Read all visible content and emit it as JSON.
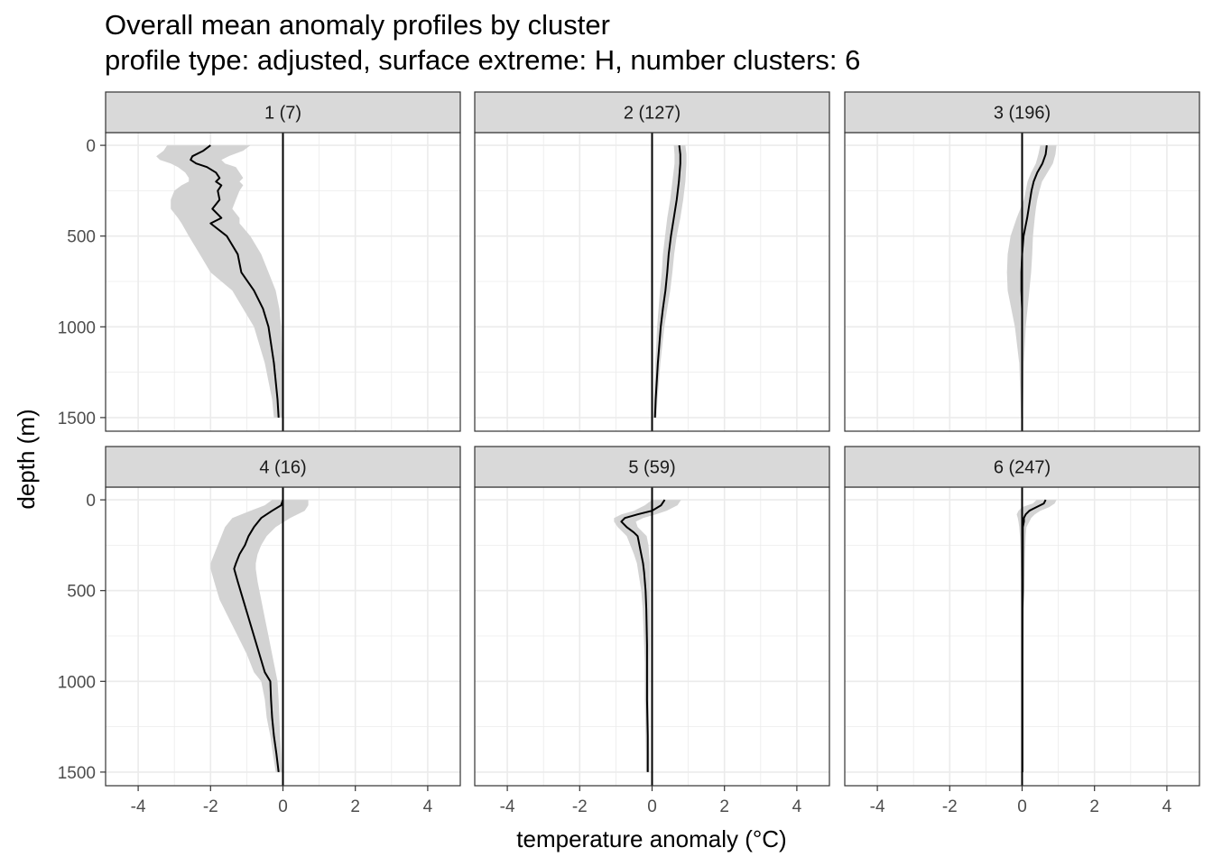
{
  "title": "Overall mean anomaly profiles by cluster",
  "subtitle": "profile type: adjusted, surface extreme: H, number clusters: 6",
  "chart_data": {
    "type": "line",
    "title": "Overall mean anomaly profiles by cluster",
    "subtitle": "profile type: adjusted, surface extreme: H, number clusters: 6",
    "xlabel": "temperature anomaly (°C)",
    "ylabel": "depth (m)",
    "xlim": [
      -4.9,
      4.9
    ],
    "ylim": [
      1575,
      -70
    ],
    "y_reversed": true,
    "x_ticks": [
      -4,
      -2,
      0,
      2,
      4
    ],
    "x_tick_labels": [
      "-4",
      "-2",
      "0",
      "2",
      "4"
    ],
    "y_ticks": [
      0,
      500,
      1000,
      1500
    ],
    "y_tick_labels": [
      "0",
      "500",
      "1000",
      "1500"
    ],
    "grid": true,
    "reference_line_x": 0,
    "colors": {
      "line": "#000000",
      "ribbon": "#d3d3d3",
      "strip": "#d9d9d9",
      "grid": "#ebebeb",
      "panel_border": "#333333"
    },
    "panels": [
      {
        "label": "1 (7)",
        "depth": [
          0,
          30,
          60,
          80,
          100,
          120,
          150,
          180,
          200,
          220,
          250,
          300,
          350,
          400,
          430,
          500,
          600,
          700,
          800,
          900,
          1000,
          1200,
          1400,
          1500
        ],
        "mean": [
          -2.0,
          -2.2,
          -2.5,
          -2.55,
          -2.4,
          -2.1,
          -1.85,
          -1.75,
          -1.85,
          -1.7,
          -1.8,
          -1.75,
          -1.95,
          -1.7,
          -2.0,
          -1.55,
          -1.25,
          -1.15,
          -0.8,
          -0.55,
          -0.4,
          -0.25,
          -0.15,
          -0.12
        ],
        "lower": [
          -3.2,
          -3.3,
          -3.5,
          -3.4,
          -3.1,
          -2.9,
          -2.7,
          -2.6,
          -2.6,
          -2.8,
          -3.0,
          -3.1,
          -3.1,
          -2.9,
          -2.8,
          -2.6,
          -2.3,
          -2.0,
          -1.4,
          -1.1,
          -0.8,
          -0.5,
          -0.3,
          -0.25
        ],
        "upper": [
          -0.9,
          -1.1,
          -1.5,
          -1.7,
          -1.6,
          -1.3,
          -1.2,
          -1.1,
          -1.2,
          -1.1,
          -1.2,
          -1.3,
          -1.4,
          -1.2,
          -1.2,
          -0.9,
          -0.6,
          -0.4,
          -0.2,
          -0.1,
          -0.05,
          -0.02,
          0.0,
          0.0
        ]
      },
      {
        "label": "2 (127)",
        "depth": [
          0,
          50,
          100,
          200,
          300,
          400,
          500,
          600,
          700,
          800,
          900,
          1000,
          1200,
          1400,
          1500
        ],
        "mean": [
          0.75,
          0.78,
          0.78,
          0.74,
          0.68,
          0.6,
          0.52,
          0.46,
          0.42,
          0.37,
          0.3,
          0.24,
          0.16,
          0.1,
          0.08
        ],
        "lower": [
          0.6,
          0.62,
          0.62,
          0.56,
          0.5,
          0.42,
          0.36,
          0.3,
          0.27,
          0.22,
          0.18,
          0.14,
          0.09,
          0.05,
          0.04
        ],
        "upper": [
          0.92,
          0.95,
          0.95,
          0.92,
          0.86,
          0.78,
          0.68,
          0.61,
          0.56,
          0.5,
          0.42,
          0.34,
          0.23,
          0.15,
          0.12
        ]
      },
      {
        "label": "3 (196)",
        "depth": [
          0,
          50,
          100,
          150,
          200,
          250,
          300,
          350,
          400,
          500,
          600,
          700,
          800,
          900,
          1000,
          1200,
          1500
        ],
        "mean": [
          0.68,
          0.65,
          0.56,
          0.42,
          0.32,
          0.26,
          0.22,
          0.18,
          0.14,
          0.04,
          0.0,
          -0.02,
          -0.02,
          0.0,
          0.0,
          0.0,
          0.0
        ],
        "lower": [
          0.5,
          0.45,
          0.38,
          0.25,
          0.15,
          0.1,
          0.05,
          -0.05,
          -0.15,
          -0.32,
          -0.4,
          -0.42,
          -0.4,
          -0.3,
          -0.2,
          -0.08,
          -0.03
        ],
        "upper": [
          0.95,
          0.92,
          0.85,
          0.7,
          0.55,
          0.48,
          0.42,
          0.38,
          0.35,
          0.3,
          0.28,
          0.25,
          0.2,
          0.15,
          0.1,
          0.05,
          0.02
        ]
      },
      {
        "label": "4 (16)",
        "depth": [
          0,
          30,
          60,
          100,
          150,
          200,
          250,
          300,
          350,
          380,
          450,
          550,
          650,
          750,
          850,
          950,
          1000,
          1100,
          1200,
          1300,
          1400,
          1500
        ],
        "mean": [
          0.0,
          -0.05,
          -0.3,
          -0.6,
          -0.8,
          -0.95,
          -1.05,
          -1.2,
          -1.3,
          -1.35,
          -1.25,
          -1.1,
          -0.95,
          -0.8,
          -0.65,
          -0.5,
          -0.35,
          -0.33,
          -0.3,
          -0.25,
          -0.18,
          -0.12
        ],
        "lower": [
          -0.3,
          -0.5,
          -0.9,
          -1.4,
          -1.6,
          -1.7,
          -1.8,
          -1.9,
          -2.0,
          -2.0,
          -1.9,
          -1.75,
          -1.5,
          -1.25,
          -1.0,
          -0.8,
          -0.6,
          -0.5,
          -0.45,
          -0.35,
          -0.28,
          -0.2
        ],
        "upper": [
          0.7,
          0.7,
          0.6,
          0.2,
          -0.2,
          -0.45,
          -0.6,
          -0.7,
          -0.75,
          -0.75,
          -0.7,
          -0.6,
          -0.5,
          -0.4,
          -0.3,
          -0.2,
          -0.15,
          -0.12,
          -0.1,
          -0.08,
          -0.05,
          -0.03
        ]
      },
      {
        "label": "5 (59)",
        "depth": [
          0,
          30,
          60,
          80,
          100,
          120,
          150,
          180,
          200,
          250,
          300,
          350,
          400,
          450,
          500,
          600,
          700,
          800,
          900,
          1000,
          1100,
          1200,
          1300,
          1400,
          1500
        ],
        "mean": [
          0.35,
          0.25,
          0.0,
          -0.4,
          -0.75,
          -0.85,
          -0.7,
          -0.5,
          -0.4,
          -0.35,
          -0.3,
          -0.25,
          -0.22,
          -0.2,
          -0.18,
          -0.16,
          -0.15,
          -0.14,
          -0.14,
          -0.14,
          -0.14,
          -0.13,
          -0.12,
          -0.12,
          -0.12
        ],
        "lower": [
          0.0,
          -0.2,
          -0.5,
          -0.85,
          -1.05,
          -1.05,
          -0.95,
          -0.8,
          -0.7,
          -0.6,
          -0.5,
          -0.42,
          -0.38,
          -0.34,
          -0.3,
          -0.26,
          -0.24,
          -0.22,
          -0.2,
          -0.2,
          -0.2,
          -0.19,
          -0.18,
          -0.17,
          -0.17
        ],
        "upper": [
          0.8,
          0.7,
          0.4,
          0.1,
          -0.25,
          -0.45,
          -0.4,
          -0.25,
          -0.15,
          -0.1,
          -0.08,
          -0.06,
          -0.06,
          -0.06,
          -0.06,
          -0.06,
          -0.06,
          -0.06,
          -0.07,
          -0.07,
          -0.08,
          -0.08,
          -0.08,
          -0.07,
          -0.07
        ]
      },
      {
        "label": "6 (247)",
        "depth": [
          0,
          20,
          40,
          60,
          80,
          100,
          120,
          150,
          200,
          250,
          300,
          400,
          500,
          600,
          800,
          1000,
          1200,
          1500
        ],
        "mean": [
          0.65,
          0.6,
          0.4,
          0.2,
          0.1,
          0.05,
          0.05,
          0.02,
          0.02,
          0.02,
          0.02,
          0.02,
          0.02,
          0.01,
          0.01,
          0.01,
          0.01,
          0.01
        ],
        "lower": [
          0.4,
          0.3,
          0.0,
          -0.1,
          -0.15,
          -0.12,
          -0.1,
          -0.08,
          -0.06,
          -0.05,
          -0.04,
          -0.03,
          -0.02,
          -0.02,
          -0.02,
          -0.01,
          -0.01,
          -0.01
        ],
        "upper": [
          0.95,
          0.9,
          0.75,
          0.5,
          0.35,
          0.25,
          0.2,
          0.12,
          0.1,
          0.09,
          0.08,
          0.07,
          0.06,
          0.05,
          0.04,
          0.03,
          0.03,
          0.02
        ]
      }
    ]
  }
}
